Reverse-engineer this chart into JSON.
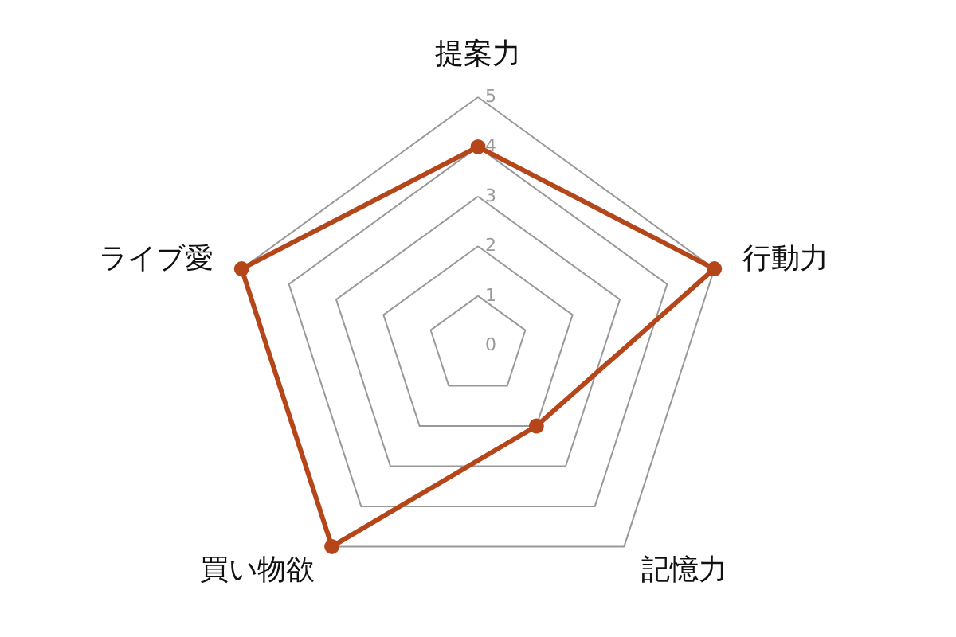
{
  "chart_data": {
    "type": "radar",
    "categories": [
      "提案力",
      "行動力",
      "記憶力",
      "買い物欲",
      "ライブ愛"
    ],
    "series": [
      {
        "color": "#b5461a",
        "values": [
          4,
          5,
          2,
          5,
          5
        ]
      }
    ],
    "ylim": [
      0,
      5
    ],
    "yticks": [
      0,
      1,
      2,
      3,
      4,
      5
    ],
    "grid": true,
    "marker": "circle"
  }
}
